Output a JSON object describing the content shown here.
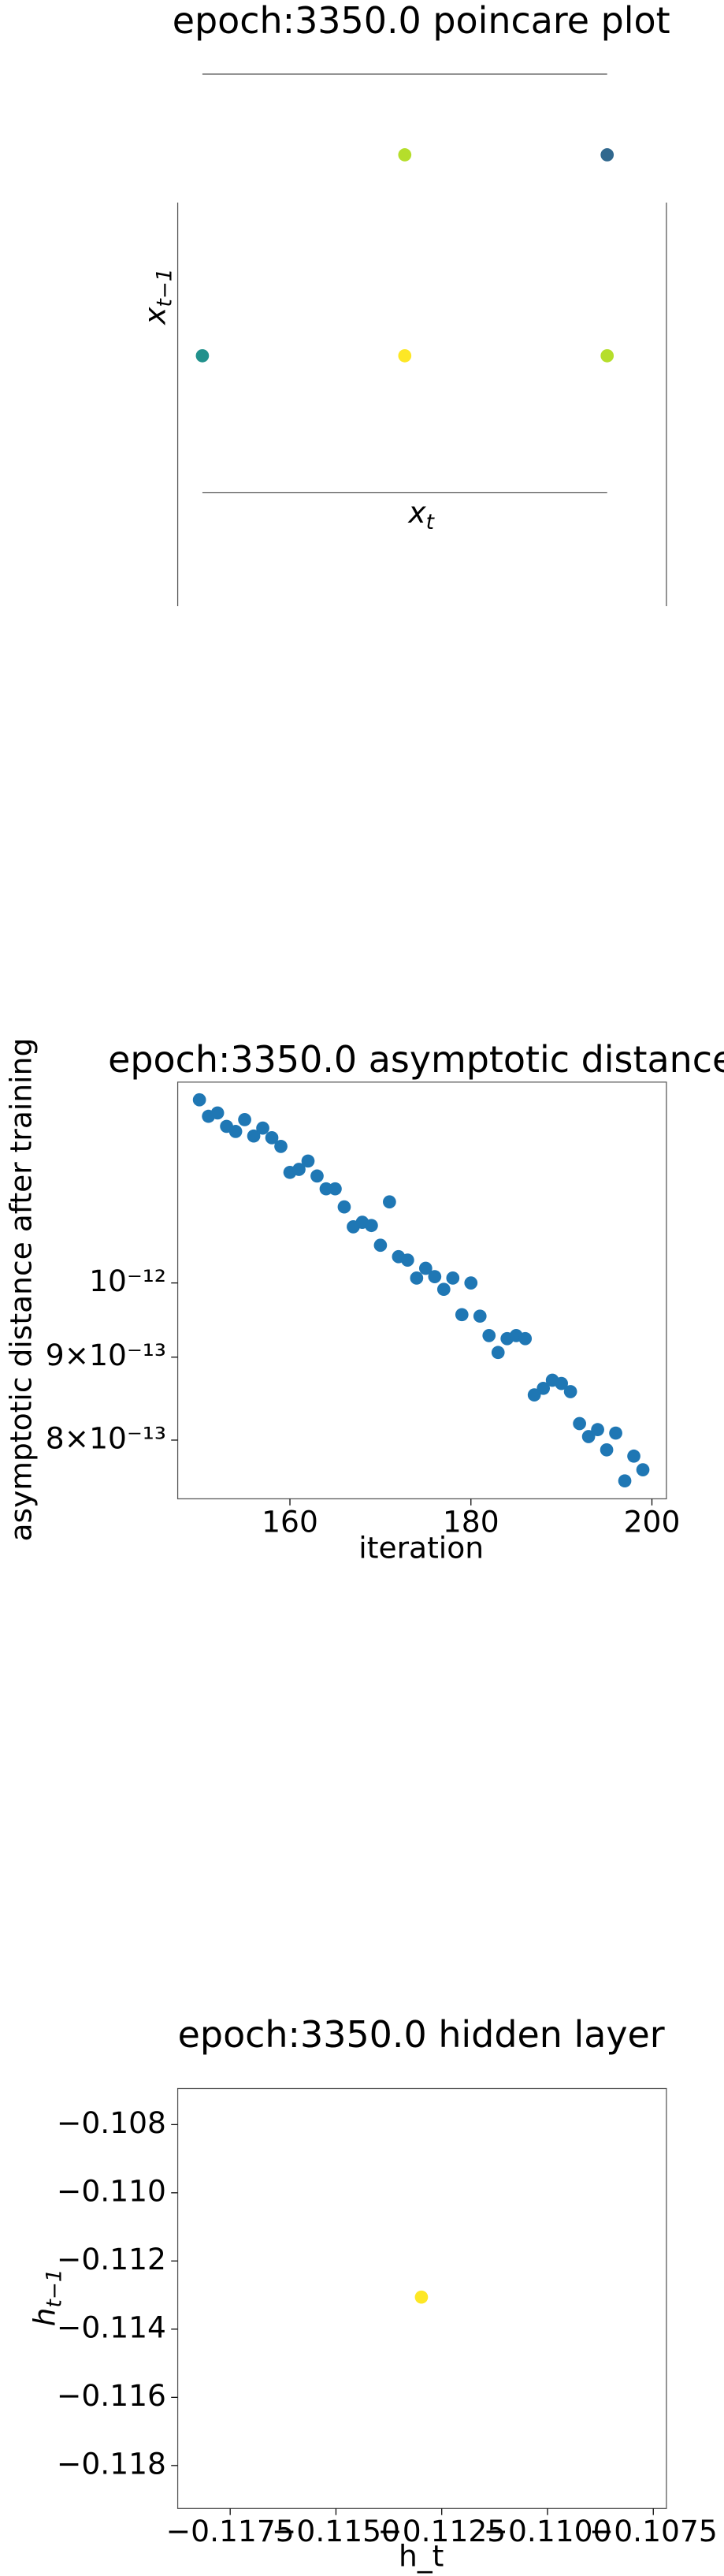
{
  "chart_data": [
    {
      "type": "scatter",
      "title": "epoch:3350.0 poincare plot",
      "xlabel": {
        "text": "x",
        "subscript": "t"
      },
      "ylabel": {
        "text": "x",
        "subscript": "t−1"
      },
      "x": [
        1,
        2,
        0,
        1,
        2
      ],
      "values": [
        2,
        2,
        1,
        1,
        1
      ],
      "colors": [
        "#b5de2b",
        "#31688e",
        "#21918c",
        "#fde725",
        "#b5de2b"
      ],
      "xlim": [
        0,
        2
      ],
      "ylim": [
        0,
        2
      ]
    },
    {
      "type": "scatter",
      "title": "epoch:3350.0 asymptotic distance",
      "xlabel": "iteration",
      "ylabel": "asymptotic distance after training",
      "log_y": true,
      "color": "#1f77b4",
      "x": [
        150,
        151,
        152,
        153,
        154,
        155,
        156,
        157,
        158,
        159,
        160,
        161,
        162,
        163,
        164,
        165,
        166,
        167,
        168,
        169,
        170,
        171,
        172,
        173,
        174,
        175,
        176,
        177,
        178,
        179,
        180,
        181,
        182,
        183,
        184,
        185,
        186,
        187,
        188,
        189,
        190,
        191,
        192,
        193,
        194,
        195,
        196,
        197,
        198,
        199
      ],
      "values": [
        1.297e-12,
        1.267e-12,
        1.273e-12,
        1.249e-12,
        1.24e-12,
        1.261e-12,
        1.232e-12,
        1.246e-12,
        1.229e-12,
        1.214e-12,
        1.17e-12,
        1.175e-12,
        1.189e-12,
        1.164e-12,
        1.143e-12,
        1.143e-12,
        1.114e-12,
        1.083e-12,
        1.09e-12,
        1.085e-12,
        1.055e-12,
        1.122e-12,
        1.038e-12,
        1.033e-12,
        1.007e-12,
        1.021e-12,
        1.009e-12,
        9.91e-13,
        1.007e-12,
        9.56e-13,
        1e-12,
        9.54e-13,
        9.28e-13,
        9.06e-13,
        9.24e-13,
        9.28e-13,
        9.24e-13,
        8.53e-13,
        8.61e-13,
        8.71e-13,
        8.67e-13,
        8.57e-13,
        8.19e-13,
        8.04e-13,
        8.12e-13,
        7.89e-13,
        8.08e-13,
        7.55e-13,
        7.82e-13,
        7.67e-13
      ],
      "xlim": [
        147.6,
        201.6
      ],
      "ylim": [
        7.36e-13,
        1.33e-12
      ],
      "xticks": [
        160,
        180,
        200
      ],
      "yticks": [
        {
          "value": 1e-12,
          "label": "10⁻¹²"
        },
        {
          "value": 9e-13,
          "label": "9×10⁻¹³"
        },
        {
          "value": 8e-13,
          "label": "8×10⁻¹³"
        }
      ]
    },
    {
      "type": "scatter",
      "title": "epoch:3350.0 hidden layer",
      "xlabel": "h_t",
      "ylabel": {
        "text": "h",
        "subscript": "t−1"
      },
      "x": [
        -0.11298
      ],
      "values": [
        -0.11306
      ],
      "colors": [
        "#fde725"
      ],
      "xlim": [
        -0.11874,
        -0.10719
      ],
      "ylim": [
        -0.11926,
        -0.10694
      ],
      "xticks": [
        {
          "value": -0.1175,
          "label": "−0.1175"
        },
        {
          "value": -0.115,
          "label": "−0.1150"
        },
        {
          "value": -0.1125,
          "label": "−0.1125"
        },
        {
          "value": -0.11,
          "label": "−0.1100"
        },
        {
          "value": -0.1075,
          "label": "−0.1075"
        }
      ],
      "yticks": [
        {
          "value": -0.108,
          "label": "−0.108"
        },
        {
          "value": -0.11,
          "label": "−0.110"
        },
        {
          "value": -0.112,
          "label": "−0.112"
        },
        {
          "value": -0.114,
          "label": "−0.114"
        },
        {
          "value": -0.116,
          "label": "−0.116"
        },
        {
          "value": -0.118,
          "label": "−0.118"
        }
      ]
    }
  ]
}
